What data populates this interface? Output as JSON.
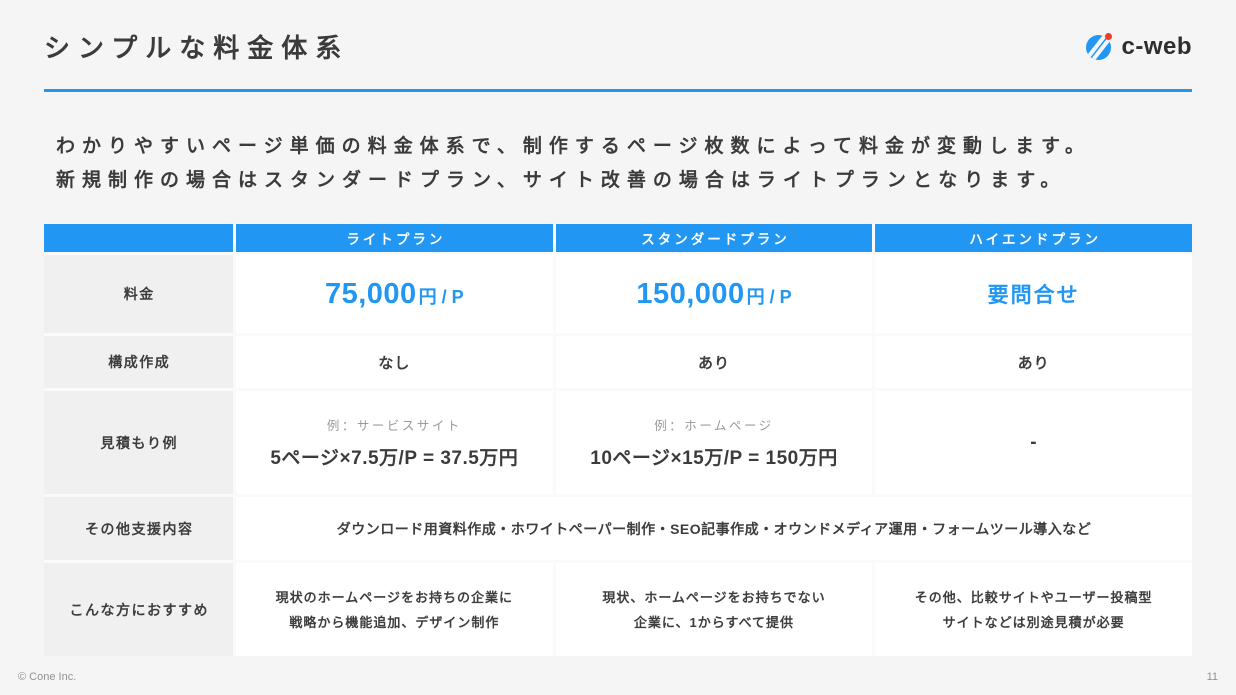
{
  "header": {
    "title": "シンプルな料金体系",
    "logo_text": "c-web"
  },
  "intro": {
    "line1": "わかりやすいページ単価の料金体系で、制作するページ枚数によって料金が変動します。",
    "line2": "新規制作の場合はスタンダードプラン、サイト改善の場合はライトプランとなります。"
  },
  "table": {
    "plans": [
      "ライトプラン",
      "スタンダードプラン",
      "ハイエンドプラン"
    ],
    "price_row": {
      "label": "料金",
      "cells": [
        {
          "value": "75,000",
          "unit": "円 / P"
        },
        {
          "value": "150,000",
          "unit": "円 / P"
        },
        {
          "value": "要問合せ",
          "unit": ""
        }
      ]
    },
    "structure_row": {
      "label": "構成作成",
      "cells": [
        "なし",
        "あり",
        "あり"
      ]
    },
    "estimate_row": {
      "label": "見積もり例",
      "cells": [
        {
          "caption": "例：サービスサイト",
          "formula": "5ページ×7.5万/P = 37.5万円"
        },
        {
          "caption": "例：ホームページ",
          "formula": "10ページ×15万/P = 150万円"
        },
        {
          "caption": "",
          "formula": "-"
        }
      ]
    },
    "support_row": {
      "label": "その他支援内容",
      "text": "ダウンロード用資料作成・ホワイトペーパー制作・SEO記事作成・オウンドメディア運用・フォームツール導入など"
    },
    "recommend_row": {
      "label": "こんな方におすすめ",
      "cells": [
        {
          "line1": "現状のホームページをお持ちの企業に",
          "line2": "戦略から機能追加、デザイン制作"
        },
        {
          "line1": "現状、ホームページをお持ちでない",
          "line2": "企業に、1からすべて提供"
        },
        {
          "line1": "その他、比較サイトやユーザー投稿型",
          "line2": "サイトなどは別途見積が必要"
        }
      ]
    }
  },
  "footer": {
    "copyright": "© Cone Inc.",
    "page_number": "11"
  },
  "colors": {
    "accent_blue": "#2196F3",
    "label_bg": "#F0F0F1",
    "logo_dot_red": "#E8402D",
    "page_bg": "#F5F5F6"
  }
}
